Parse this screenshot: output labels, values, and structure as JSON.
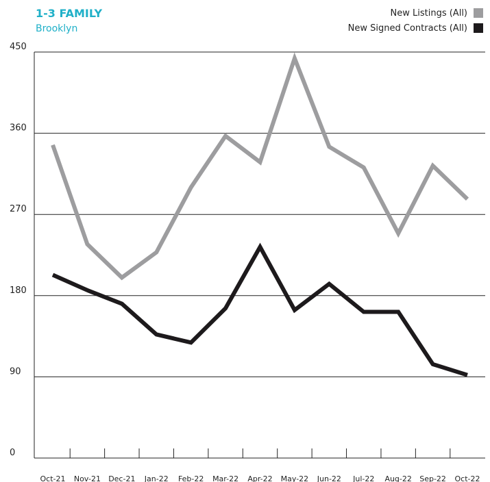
{
  "chart_data": {
    "type": "line",
    "title": "1-3 FAMILY",
    "subtitle": "Brooklyn",
    "categories": [
      "Oct-21",
      "Nov-21",
      "Dec-21",
      "Jan-22",
      "Feb-22",
      "Mar-22",
      "Apr-22",
      "May-22",
      "Jun-22",
      "Jul-22",
      "Aug-22",
      "Sep-22",
      "Oct-22"
    ],
    "series": [
      {
        "name": "New Listings (All)",
        "color": "#9d9d9f",
        "values": [
          347,
          237,
          200,
          228,
          300,
          357,
          328,
          443,
          345,
          322,
          249,
          324,
          287
        ]
      },
      {
        "name": "New Signed Contracts (All)",
        "color": "#1d1a1c",
        "values": [
          203,
          186,
          171,
          137,
          128,
          166,
          234,
          164,
          193,
          162,
          162,
          104,
          92
        ]
      }
    ],
    "ylim": [
      0,
      450
    ],
    "yticks": [
      0,
      90,
      180,
      270,
      360,
      450
    ],
    "grid": true,
    "legend": "top-right"
  }
}
